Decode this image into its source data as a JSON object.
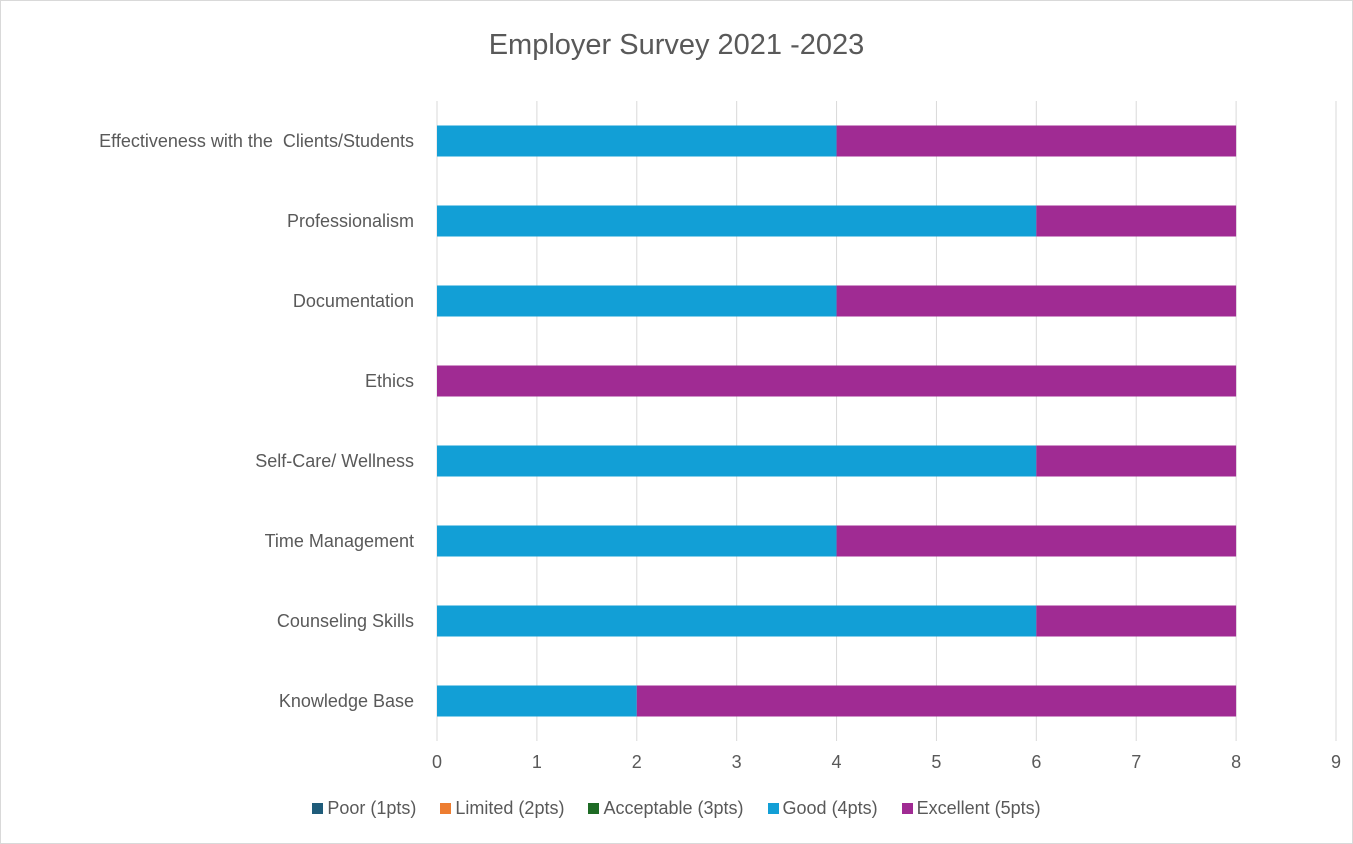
{
  "chart_data": {
    "type": "bar",
    "orientation": "horizontal",
    "stacked": true,
    "title": "Employer Survey 2021 -2023",
    "categories": [
      "Knowledge Base",
      "Counseling Skills",
      "Time Management",
      "Self-Care/ Wellness",
      "Ethics",
      "Documentation",
      "Professionalism",
      "Effectiveness with the  Clients/Students"
    ],
    "series": [
      {
        "name": "Poor (1pts)",
        "color": "#1f5c7a",
        "values": [
          0,
          0,
          0,
          0,
          0,
          0,
          0,
          0
        ]
      },
      {
        "name": "Limited (2pts)",
        "color": "#ed7d31",
        "values": [
          0,
          0,
          0,
          0,
          0,
          0,
          0,
          0
        ]
      },
      {
        "name": "Acceptable (3pts)",
        "color": "#1e6b25",
        "values": [
          0,
          0,
          0,
          0,
          0,
          0,
          0,
          0
        ]
      },
      {
        "name": "Good (4pts)",
        "color": "#129fd6",
        "values": [
          2,
          6,
          4,
          6,
          0,
          4,
          6,
          4
        ]
      },
      {
        "name": "Excellent (5pts)",
        "color": "#a02b93",
        "values": [
          6,
          2,
          4,
          2,
          8,
          4,
          2,
          4
        ]
      }
    ],
    "xlim": [
      0,
      9
    ],
    "xticks": [
      "0",
      "1",
      "2",
      "3",
      "4",
      "5",
      "6",
      "7",
      "8",
      "9"
    ],
    "grid": "vertical",
    "legend_position": "bottom"
  }
}
